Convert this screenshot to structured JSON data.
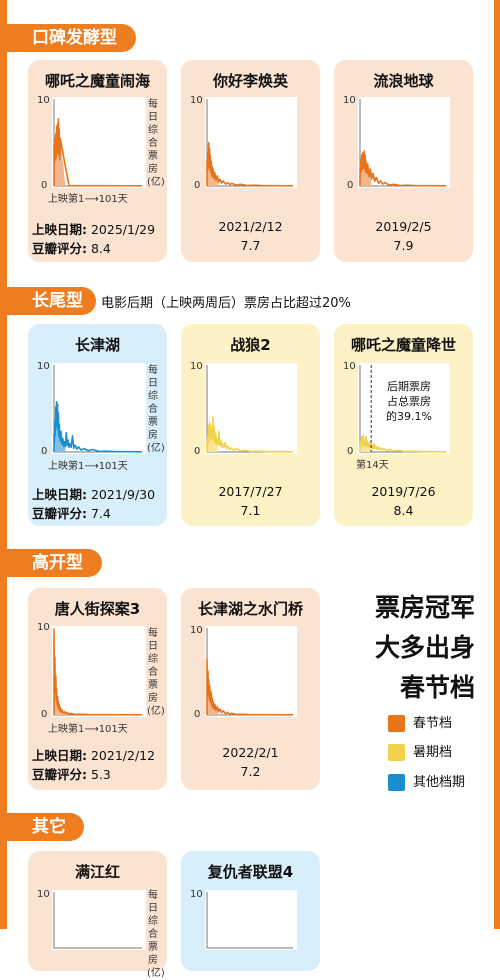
{
  "colors": {
    "spring": "#e8731a",
    "summer": "#f2d24a",
    "other": "#1a8fd0",
    "accent": "#ee7d1f"
  },
  "sections": [
    {
      "tag": "口碑发酵型",
      "desc": ""
    },
    {
      "tag": "长尾型",
      "desc": "电影后期（上映两周后）票房占比超过20%"
    },
    {
      "tag": "高开型",
      "desc": ""
    },
    {
      "tag": "其它",
      "desc": ""
    }
  ],
  "axis_text": {
    "y_max": "10",
    "y_min": "0",
    "y_label": "每日综合票房(亿)",
    "x_range": "上映第1⟶101天",
    "release_label": "上映日期:",
    "score_label": "豆瓣评分:"
  },
  "headline": [
    "票房冠军",
    "大多出身",
    "春节档"
  ],
  "legend": [
    {
      "label": "春节档",
      "color": "#e8731a"
    },
    {
      "label": "暑期档",
      "color": "#f2d24a"
    },
    {
      "label": "其他档期",
      "color": "#1a8fd0"
    }
  ],
  "chart_data": [
    {
      "type": "area",
      "title": "哪吒之魔童闹海",
      "season": "spring",
      "release_date": "2025/1/29",
      "douban": "8.4",
      "ylim": [
        0,
        10
      ],
      "x_range": [
        1,
        101
      ],
      "peaks": [
        [
          1,
          4.9
        ],
        [
          2,
          5.6
        ],
        [
          3,
          6.1
        ],
        [
          4,
          7.0
        ],
        [
          5,
          7.3
        ],
        [
          6,
          7.9
        ],
        [
          7,
          6.7
        ],
        [
          8,
          5.6
        ]
      ]
    },
    {
      "type": "area",
      "title": "你好李焕英",
      "season": "spring",
      "release_date": "2021/2/12",
      "douban": "7.7",
      "ylim": [
        0,
        10
      ],
      "x_range": [
        1,
        101
      ],
      "peaks": [
        [
          1,
          2.9
        ],
        [
          2,
          3.9
        ],
        [
          3,
          5.1
        ],
        [
          4,
          4.4
        ],
        [
          5,
          3.6
        ],
        [
          6,
          2.9
        ],
        [
          7,
          2.3
        ],
        [
          8,
          2.0
        ],
        [
          10,
          1.6
        ],
        [
          13,
          1.2
        ],
        [
          16,
          0.8
        ],
        [
          20,
          0.6
        ],
        [
          25,
          0.4
        ],
        [
          30,
          0.3
        ],
        [
          40,
          0.2
        ],
        [
          55,
          0.1
        ]
      ]
    },
    {
      "type": "area",
      "title": "流浪地球",
      "season": "spring",
      "release_date": "2019/2/5",
      "douban": "7.9",
      "ylim": [
        0,
        10
      ],
      "x_range": [
        1,
        101
      ],
      "peaks": [
        [
          1,
          2.1
        ],
        [
          2,
          3.1
        ],
        [
          3,
          3.6
        ],
        [
          4,
          3.9
        ],
        [
          5,
          3.8
        ],
        [
          6,
          4.1
        ],
        [
          7,
          3.6
        ],
        [
          8,
          2.9
        ],
        [
          10,
          2.6
        ],
        [
          13,
          2.0
        ],
        [
          16,
          1.5
        ],
        [
          20,
          1.0
        ],
        [
          25,
          0.6
        ],
        [
          30,
          0.4
        ],
        [
          40,
          0.2
        ],
        [
          55,
          0.1
        ]
      ]
    },
    {
      "type": "area",
      "title": "长津湖",
      "season": "other",
      "release_date": "2021/9/30",
      "douban": "7.4",
      "ylim": [
        0,
        10
      ],
      "x_range": [
        1,
        101
      ],
      "peaks": [
        [
          1,
          2.1
        ],
        [
          2,
          3.6
        ],
        [
          3,
          5.3
        ],
        [
          4,
          5.9
        ],
        [
          5,
          5.6
        ],
        [
          6,
          4.6
        ],
        [
          7,
          3.3
        ],
        [
          9,
          2.4
        ],
        [
          11,
          1.6
        ],
        [
          13,
          1.2
        ],
        [
          15,
          2.3
        ],
        [
          17,
          1.4
        ],
        [
          19,
          1.0
        ],
        [
          22,
          1.9
        ],
        [
          25,
          0.8
        ],
        [
          29,
          0.6
        ],
        [
          35,
          0.4
        ],
        [
          45,
          0.3
        ],
        [
          60,
          0.1
        ]
      ]
    },
    {
      "type": "area",
      "title": "战狼2",
      "season": "summer",
      "release_date": "2017/7/27",
      "douban": "7.1",
      "ylim": [
        0,
        10
      ],
      "x_range": [
        1,
        101
      ],
      "peaks": [
        [
          1,
          1.2
        ],
        [
          2,
          2.1
        ],
        [
          3,
          3.1
        ],
        [
          4,
          3.5
        ],
        [
          5,
          3.2
        ],
        [
          6,
          2.6
        ],
        [
          7,
          2.9
        ],
        [
          8,
          4.1
        ],
        [
          9,
          3.1
        ],
        [
          11,
          2.2
        ],
        [
          13,
          1.6
        ],
        [
          15,
          2.4
        ],
        [
          17,
          1.4
        ],
        [
          19,
          1.0
        ],
        [
          22,
          1.1
        ],
        [
          25,
          0.7
        ],
        [
          29,
          0.5
        ],
        [
          35,
          0.4
        ],
        [
          45,
          0.2
        ],
        [
          60,
          0.1
        ]
      ]
    },
    {
      "type": "area",
      "title": "哪吒之魔童降世",
      "season": "summer",
      "release_date": "2019/7/26",
      "douban": "8.4",
      "ylim": [
        0,
        10
      ],
      "x_range": [
        1,
        101
      ],
      "annotation": {
        "text": [
          "后期票房",
          "占总票房",
          "的39.1%"
        ],
        "day_label": "第14天",
        "day": 14
      },
      "peaks": [
        [
          1,
          0.9
        ],
        [
          2,
          1.3
        ],
        [
          3,
          1.8
        ],
        [
          4,
          1.6
        ],
        [
          5,
          2.0
        ],
        [
          6,
          1.5
        ],
        [
          7,
          1.2
        ],
        [
          8,
          1.8
        ],
        [
          9,
          1.4
        ],
        [
          11,
          1.0
        ],
        [
          13,
          1.2
        ],
        [
          15,
          0.8
        ],
        [
          17,
          1.0
        ],
        [
          19,
          0.7
        ],
        [
          22,
          0.6
        ],
        [
          25,
          0.5
        ],
        [
          29,
          0.4
        ],
        [
          35,
          0.3
        ],
        [
          45,
          0.2
        ],
        [
          60,
          0.1
        ]
      ]
    },
    {
      "type": "area",
      "title": "唐人街探案3",
      "season": "spring",
      "release_date": "2021/2/12",
      "douban": "5.3",
      "ylim": [
        0,
        10
      ],
      "x_range": [
        1,
        101
      ],
      "peaks": [
        [
          1,
          10.0
        ],
        [
          2,
          6.8
        ],
        [
          3,
          4.6
        ],
        [
          4,
          3.1
        ],
        [
          5,
          2.2
        ],
        [
          6,
          1.6
        ],
        [
          7,
          1.2
        ],
        [
          8,
          0.9
        ],
        [
          10,
          0.6
        ],
        [
          13,
          0.4
        ],
        [
          16,
          0.3
        ],
        [
          20,
          0.2
        ],
        [
          30,
          0.1
        ]
      ]
    },
    {
      "type": "area",
      "title": "长津湖之水门桥",
      "season": "spring",
      "release_date": "2022/2/1",
      "douban": "7.2",
      "ylim": [
        0,
        10
      ],
      "x_range": [
        1,
        101
      ],
      "peaks": [
        [
          1,
          6.6
        ],
        [
          2,
          5.2
        ],
        [
          3,
          4.2
        ],
        [
          4,
          3.5
        ],
        [
          5,
          2.9
        ],
        [
          6,
          2.6
        ],
        [
          7,
          2.0
        ],
        [
          8,
          1.6
        ],
        [
          10,
          1.3
        ],
        [
          13,
          1.0
        ],
        [
          16,
          0.7
        ],
        [
          20,
          0.5
        ],
        [
          25,
          0.3
        ],
        [
          30,
          0.2
        ],
        [
          40,
          0.1
        ]
      ]
    },
    {
      "type": "area",
      "title": "满江红",
      "season": "spring",
      "ylim": [
        0,
        10
      ],
      "peaks": []
    },
    {
      "type": "area",
      "title": "复仇者联盟4",
      "season": "other",
      "ylim": [
        0,
        10
      ],
      "peaks": []
    }
  ]
}
